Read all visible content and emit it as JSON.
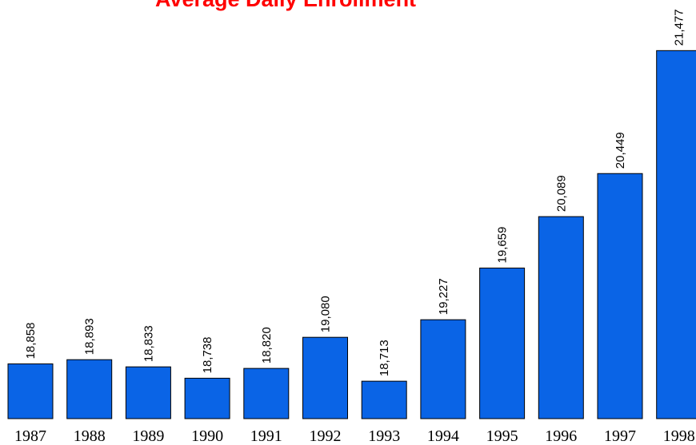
{
  "chart_data": {
    "type": "bar",
    "title": "Average Daily Enrollment",
    "categories": [
      "1987",
      "1988",
      "1989",
      "1990",
      "1991",
      "1992",
      "1993",
      "1994",
      "1995",
      "1996",
      "1997",
      "1998"
    ],
    "values": [
      18858,
      18893,
      18833,
      18738,
      18820,
      19080,
      18713,
      19227,
      19659,
      20089,
      20449,
      21477
    ],
    "value_labels": [
      "18,858",
      "18,893",
      "18,833",
      "18,738",
      "18,820",
      "19,080",
      "18,713",
      "19,227",
      "19,659",
      "20,089",
      "20,449",
      "21,477"
    ],
    "color": "#0a64e6",
    "ylim": [
      18400,
      21900
    ]
  }
}
